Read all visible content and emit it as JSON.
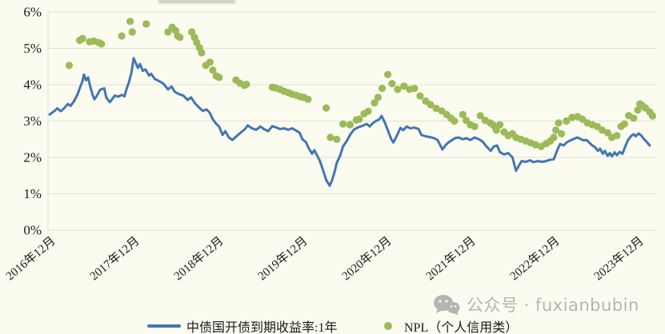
{
  "watermark": {
    "text": "公众号 · fuxianbubin"
  },
  "colors": {
    "line": "#4276B4",
    "scatter": "#9BBB59",
    "grid": "#E3E1D0",
    "axis_text": "#1A1A1A",
    "background": "#FCFBF0",
    "watermark": "#B5B5B3"
  },
  "chart_data": {
    "type": "line+scatter",
    "title": "",
    "xlabel": "",
    "ylabel": "",
    "grid": "horizontal",
    "legend_position": "bottom",
    "ylim": [
      0,
      6
    ],
    "y_ticks": [
      {
        "value": 6,
        "label": "6%"
      },
      {
        "value": 5,
        "label": "5%"
      },
      {
        "value": 4,
        "label": "4%"
      },
      {
        "value": 3,
        "label": "3%"
      },
      {
        "value": 2,
        "label": "2%"
      },
      {
        "value": 1,
        "label": "1%"
      },
      {
        "value": 0,
        "label": "0%"
      }
    ],
    "x_unit": "months since 2016-12",
    "xlim_months": [
      0,
      87
    ],
    "x_ticks": [
      {
        "month": 0,
        "label": "2016年12月"
      },
      {
        "month": 12,
        "label": "2017年12月"
      },
      {
        "month": 24,
        "label": "2018年12月"
      },
      {
        "month": 36,
        "label": "2019年12月"
      },
      {
        "month": 48,
        "label": "2020年12月"
      },
      {
        "month": 60,
        "label": "2021年12月"
      },
      {
        "month": 72,
        "label": "2022年12月"
      },
      {
        "month": 84,
        "label": "2023年12月"
      }
    ],
    "series": [
      {
        "name": "中债国开债到期收益率:1年",
        "type": "line",
        "color": "#4276B4",
        "points": [
          [
            0,
            3.18
          ],
          [
            0.7,
            3.28
          ],
          [
            1.1,
            3.35
          ],
          [
            1.6,
            3.27
          ],
          [
            2.1,
            3.36
          ],
          [
            2.6,
            3.47
          ],
          [
            3,
            3.42
          ],
          [
            3.5,
            3.55
          ],
          [
            4,
            3.74
          ],
          [
            4.3,
            3.9
          ],
          [
            4.7,
            4.1
          ],
          [
            4.9,
            4.28
          ],
          [
            5.2,
            4.12
          ],
          [
            5.5,
            4.2
          ],
          [
            5.8,
            3.95
          ],
          [
            6.1,
            3.74
          ],
          [
            6.4,
            3.6
          ],
          [
            6.7,
            3.68
          ],
          [
            7.2,
            3.86
          ],
          [
            7.8,
            3.9
          ],
          [
            8.1,
            3.64
          ],
          [
            8.6,
            3.52
          ],
          [
            9.3,
            3.7
          ],
          [
            9.8,
            3.67
          ],
          [
            10.3,
            3.72
          ],
          [
            10.7,
            3.68
          ],
          [
            11,
            3.9
          ],
          [
            11.3,
            4.05
          ],
          [
            11.7,
            4.35
          ],
          [
            12,
            4.73
          ],
          [
            12.3,
            4.6
          ],
          [
            12.6,
            4.46
          ],
          [
            12.9,
            4.57
          ],
          [
            13.3,
            4.38
          ],
          [
            13.7,
            4.42
          ],
          [
            14.2,
            4.25
          ],
          [
            14.5,
            4.3
          ],
          [
            15,
            4.16
          ],
          [
            15.4,
            4.12
          ],
          [
            15.9,
            4.07
          ],
          [
            16.3,
            4.02
          ],
          [
            16.9,
            3.87
          ],
          [
            17.4,
            3.95
          ],
          [
            17.9,
            3.8
          ],
          [
            18.5,
            3.74
          ],
          [
            19.1,
            3.7
          ],
          [
            19.7,
            3.58
          ],
          [
            20.2,
            3.65
          ],
          [
            20.8,
            3.48
          ],
          [
            21.4,
            3.36
          ],
          [
            21.9,
            3.28
          ],
          [
            22.4,
            3.32
          ],
          [
            22.9,
            3.22
          ],
          [
            23.3,
            3.05
          ],
          [
            23.8,
            2.92
          ],
          [
            24.2,
            2.85
          ],
          [
            24.7,
            2.62
          ],
          [
            25.1,
            2.72
          ],
          [
            25.6,
            2.55
          ],
          [
            26.1,
            2.48
          ],
          [
            26.5,
            2.55
          ],
          [
            26.9,
            2.62
          ],
          [
            27.4,
            2.7
          ],
          [
            27.9,
            2.78
          ],
          [
            28.3,
            2.88
          ],
          [
            28.9,
            2.8
          ],
          [
            29.5,
            2.76
          ],
          [
            30.1,
            2.85
          ],
          [
            30.6,
            2.78
          ],
          [
            31.2,
            2.72
          ],
          [
            31.8,
            2.86
          ],
          [
            32.3,
            2.83
          ],
          [
            32.9,
            2.78
          ],
          [
            33.5,
            2.8
          ],
          [
            34.1,
            2.76
          ],
          [
            34.6,
            2.8
          ],
          [
            35.2,
            2.74
          ],
          [
            35.7,
            2.68
          ],
          [
            36.1,
            2.5
          ],
          [
            36.6,
            2.42
          ],
          [
            37,
            2.25
          ],
          [
            37.5,
            2.1
          ],
          [
            37.8,
            2.2
          ],
          [
            38.2,
            2.05
          ],
          [
            38.6,
            1.9
          ],
          [
            39.1,
            1.62
          ],
          [
            39.5,
            1.38
          ],
          [
            40,
            1.22
          ],
          [
            40.3,
            1.35
          ],
          [
            40.7,
            1.6
          ],
          [
            41,
            1.85
          ],
          [
            41.5,
            2.05
          ],
          [
            41.9,
            2.3
          ],
          [
            42.4,
            2.44
          ],
          [
            43,
            2.65
          ],
          [
            43.5,
            2.77
          ],
          [
            44.1,
            2.83
          ],
          [
            44.7,
            2.87
          ],
          [
            45.3,
            2.92
          ],
          [
            45.7,
            2.85
          ],
          [
            46.2,
            2.95
          ],
          [
            46.6,
            3
          ],
          [
            47.1,
            3.05
          ],
          [
            47.4,
            3.14
          ],
          [
            47.9,
            2.95
          ],
          [
            48.3,
            2.75
          ],
          [
            48.8,
            2.5
          ],
          [
            49.1,
            2.41
          ],
          [
            49.6,
            2.6
          ],
          [
            50.1,
            2.81
          ],
          [
            50.5,
            2.75
          ],
          [
            51,
            2.85
          ],
          [
            51.5,
            2.8
          ],
          [
            52.1,
            2.82
          ],
          [
            52.7,
            2.78
          ],
          [
            53.1,
            2.62
          ],
          [
            53.7,
            2.58
          ],
          [
            54.3,
            2.56
          ],
          [
            54.9,
            2.53
          ],
          [
            55.4,
            2.48
          ],
          [
            55.8,
            2.33
          ],
          [
            56.1,
            2.22
          ],
          [
            56.6,
            2.35
          ],
          [
            57,
            2.42
          ],
          [
            57.5,
            2.48
          ],
          [
            57.9,
            2.53
          ],
          [
            58.4,
            2.55
          ],
          [
            59,
            2.5
          ],
          [
            59.5,
            2.53
          ],
          [
            60.1,
            2.48
          ],
          [
            60.7,
            2.55
          ],
          [
            61.3,
            2.5
          ],
          [
            61.8,
            2.44
          ],
          [
            62.4,
            2.3
          ],
          [
            63,
            2.18
          ],
          [
            63.4,
            2.3
          ],
          [
            63.9,
            2.33
          ],
          [
            64.3,
            2.15
          ],
          [
            64.9,
            2.08
          ],
          [
            65.5,
            2.12
          ],
          [
            66.1,
            2
          ],
          [
            66.6,
            1.63
          ],
          [
            67.1,
            1.8
          ],
          [
            67.4,
            1.9
          ],
          [
            68,
            1.88
          ],
          [
            68.6,
            1.92
          ],
          [
            69.1,
            1.87
          ],
          [
            69.7,
            1.9
          ],
          [
            70.3,
            1.88
          ],
          [
            70.9,
            1.9
          ],
          [
            71.4,
            1.93
          ],
          [
            72,
            1.95
          ],
          [
            72.5,
            2.2
          ],
          [
            72.9,
            2.37
          ],
          [
            73.4,
            2.33
          ],
          [
            73.9,
            2.42
          ],
          [
            74.4,
            2.47
          ],
          [
            75,
            2.52
          ],
          [
            75.4,
            2.55
          ],
          [
            75.9,
            2.5
          ],
          [
            76.3,
            2.47
          ],
          [
            76.7,
            2.48
          ],
          [
            77.1,
            2.4
          ],
          [
            77.5,
            2.33
          ],
          [
            77.9,
            2.28
          ],
          [
            78.3,
            2.18
          ],
          [
            78.6,
            2.24
          ],
          [
            79,
            2.1
          ],
          [
            79.3,
            2.18
          ],
          [
            79.7,
            2.04
          ],
          [
            80,
            2.12
          ],
          [
            80.3,
            2.03
          ],
          [
            80.7,
            2.14
          ],
          [
            81,
            2.06
          ],
          [
            81.4,
            2.15
          ],
          [
            81.8,
            2.1
          ],
          [
            82.2,
            2.3
          ],
          [
            82.6,
            2.48
          ],
          [
            83,
            2.58
          ],
          [
            83.4,
            2.64
          ],
          [
            83.7,
            2.58
          ],
          [
            84.1,
            2.66
          ],
          [
            84.5,
            2.6
          ],
          [
            84.9,
            2.5
          ],
          [
            85.3,
            2.42
          ],
          [
            85.7,
            2.33
          ]
        ]
      },
      {
        "name": "NPL（个人信用类）",
        "type": "scatter",
        "color": "#9BBB59",
        "points": [
          [
            2.8,
            4.53
          ],
          [
            4.3,
            5.22
          ],
          [
            4.7,
            5.27
          ],
          [
            5.7,
            5.18
          ],
          [
            6.3,
            5.2
          ],
          [
            7,
            5.16
          ],
          [
            7.4,
            5.12
          ],
          [
            10.3,
            5.34
          ],
          [
            11.5,
            5.74
          ],
          [
            11.8,
            5.45
          ],
          [
            13.8,
            5.67
          ],
          [
            16.9,
            5.45
          ],
          [
            17.5,
            5.58
          ],
          [
            18,
            5.49
          ],
          [
            18.3,
            5.34
          ],
          [
            18.6,
            5.3
          ],
          [
            20.3,
            5.45
          ],
          [
            20.7,
            5.3
          ],
          [
            21,
            5.16
          ],
          [
            21.4,
            5.02
          ],
          [
            21.7,
            4.88
          ],
          [
            22.3,
            4.53
          ],
          [
            22.9,
            4.62
          ],
          [
            23.3,
            4.4
          ],
          [
            23.8,
            4.24
          ],
          [
            24.2,
            4.2
          ],
          [
            26.6,
            4.13
          ],
          [
            27.2,
            4.04
          ],
          [
            27.8,
            3.98
          ],
          [
            28.1,
            4.01
          ],
          [
            31.8,
            3.93
          ],
          [
            32.3,
            3.91
          ],
          [
            32.9,
            3.87
          ],
          [
            33.5,
            3.82
          ],
          [
            34.1,
            3.78
          ],
          [
            34.6,
            3.74
          ],
          [
            35.2,
            3.71
          ],
          [
            35.8,
            3.67
          ],
          [
            36.3,
            3.65
          ],
          [
            36.9,
            3.6
          ],
          [
            39.5,
            3.36
          ],
          [
            40.1,
            2.55
          ],
          [
            41,
            2.5
          ],
          [
            41.9,
            2.92
          ],
          [
            42.9,
            2.9
          ],
          [
            43.8,
            3.03
          ],
          [
            44.2,
            3.05
          ],
          [
            44.9,
            3.2
          ],
          [
            45.5,
            3.27
          ],
          [
            46.4,
            3.5
          ],
          [
            46.9,
            3.65
          ],
          [
            47.5,
            3.9
          ],
          [
            48.3,
            4.28
          ],
          [
            48.9,
            4.03
          ],
          [
            49.7,
            3.87
          ],
          [
            50.6,
            3.96
          ],
          [
            51.4,
            3.87
          ],
          [
            52.1,
            3.9
          ],
          [
            52.9,
            3.69
          ],
          [
            53.7,
            3.55
          ],
          [
            54.4,
            3.45
          ],
          [
            55.2,
            3.35
          ],
          [
            56,
            3.28
          ],
          [
            56.7,
            3.18
          ],
          [
            57.3,
            3.08
          ],
          [
            57.8,
            3
          ],
          [
            59,
            3.18
          ],
          [
            59.5,
            3.02
          ],
          [
            60.1,
            2.9
          ],
          [
            60.7,
            2.85
          ],
          [
            61.5,
            3.15
          ],
          [
            62.2,
            3.02
          ],
          [
            62.9,
            2.95
          ],
          [
            63.4,
            2.88
          ],
          [
            63.8,
            2.75
          ],
          [
            64.3,
            2.9
          ],
          [
            64.9,
            2.7
          ],
          [
            65.5,
            2.6
          ],
          [
            66.1,
            2.65
          ],
          [
            66.6,
            2.55
          ],
          [
            67.3,
            2.5
          ],
          [
            68,
            2.45
          ],
          [
            68.7,
            2.4
          ],
          [
            69.4,
            2.35
          ],
          [
            70.2,
            2.3
          ],
          [
            70.9,
            2.38
          ],
          [
            71.5,
            2.45
          ],
          [
            72,
            2.55
          ],
          [
            72.3,
            2.75
          ],
          [
            72.7,
            2.95
          ],
          [
            73.1,
            2.65
          ],
          [
            73.8,
            3
          ],
          [
            74.6,
            3.1
          ],
          [
            75.4,
            3.12
          ],
          [
            76.1,
            3.05
          ],
          [
            76.8,
            2.95
          ],
          [
            77.5,
            2.9
          ],
          [
            78.2,
            2.85
          ],
          [
            78.9,
            2.75
          ],
          [
            79.7,
            2.68
          ],
          [
            80.3,
            2.55
          ],
          [
            81,
            2.6
          ],
          [
            81.6,
            2.85
          ],
          [
            82.1,
            2.92
          ],
          [
            82.7,
            3.15
          ],
          [
            83.4,
            3.08
          ],
          [
            84,
            3.3
          ],
          [
            84.3,
            3.47
          ],
          [
            84.6,
            3.43
          ],
          [
            85.1,
            3.36
          ],
          [
            85.7,
            3.25
          ],
          [
            86.1,
            3.14
          ]
        ]
      }
    ]
  }
}
